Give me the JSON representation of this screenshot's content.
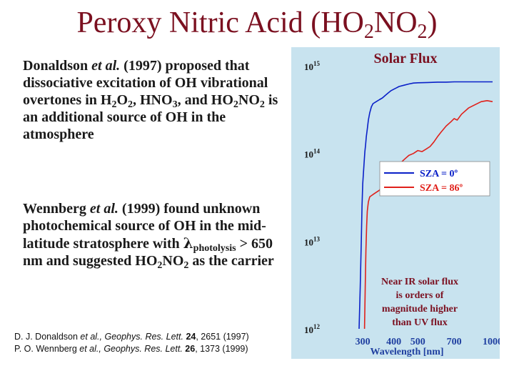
{
  "slide": {
    "title": {
      "part1": "Peroxy Nitric Acid (HO",
      "sub1": "2",
      "part2": "NO",
      "sub2": "2",
      "part3": ")"
    },
    "para1": {
      "t1": "Donaldson ",
      "etal": "et al.",
      "t2": " (1997) proposed that dissociative excitation of OH vibrational overtones in H",
      "s1": "2",
      "t3": "O",
      "s2": "2",
      "t4": ", HNO",
      "s3": "3",
      "t5": ", and HO",
      "s4": "2",
      "t6": "NO",
      "s5": "2",
      "t7": " is an additional source of OH in the atmosphere"
    },
    "para2": {
      "t1": "Wennberg ",
      "etal": "et al.",
      "t2": " (1999) found unknown photochemical source of OH in the mid-latitude stratosphere with ",
      "lambda": "λ",
      "lsub": "photolysis",
      "t3": " > 650 nm and suggested HO",
      "s1": "2",
      "t4": "NO",
      "s2": "2",
      "t5": " as the carrier"
    },
    "refs": [
      {
        "authors": "D. J. Donaldson ",
        "etal": "et al.",
        "journal": ", Geophys. Res. Lett. ",
        "volume": "24",
        "rest": ", 2651 (1997)"
      },
      {
        "authors": "P. O. Wennberg ",
        "etal": "et al.",
        "journal": ", Geophys. Res. Lett. ",
        "volume": "26",
        "rest": ", 1373 (1999)"
      }
    ]
  },
  "chart_data": {
    "type": "line",
    "title": "Solar Flux",
    "xlabel": "Wavelength [nm]",
    "ylabel": "",
    "xscale": "log",
    "yscale": "log",
    "xlim": [
      230,
      1000
    ],
    "ylim": [
      1000000000000.0,
      1000000000000000.0
    ],
    "x_ticks": [
      300,
      400,
      500,
      700,
      1000
    ],
    "x_tick_labels": [
      "300",
      "400",
      "500",
      "700",
      "1000"
    ],
    "y_ticks": [
      {
        "base": "10",
        "exp": "15"
      },
      {
        "base": "10",
        "exp": "14"
      },
      {
        "base": "10",
        "exp": "13"
      },
      {
        "base": "10",
        "exp": "12"
      }
    ],
    "legend_position": "middle-right",
    "annotation": "Near IR solar flux is orders of magnitude higher than UV flux",
    "colors": {
      "background": "#c8e3ef",
      "title": "#7b1020",
      "sza0": "#0a20c8",
      "sza86": "#e0201a",
      "axis_text": "#1a1a1a",
      "xlabel": "#1f3fa0"
    },
    "series": [
      {
        "name": "SZA = 0º",
        "color": "#0a20c8",
        "x": [
          290,
          293,
          296,
          298,
          300,
          302,
          304,
          306,
          308,
          310,
          313,
          316,
          320,
          325,
          330,
          340,
          350,
          360,
          370,
          380,
          390,
          400,
          410,
          420,
          440,
          460,
          480,
          500,
          550,
          600,
          650,
          700,
          800,
          900,
          1000
        ],
        "y": [
          1000000000000.0,
          3000000000000.0,
          10000000000000.0,
          25000000000000.0,
          45000000000000.0,
          60000000000000.0,
          80000000000000.0,
          105000000000000.0,
          125000000000000.0,
          155000000000000.0,
          190000000000000.0,
          240000000000000.0,
          290000000000000.0,
          340000000000000.0,
          370000000000000.0,
          390000000000000.0,
          410000000000000.0,
          430000000000000.0,
          460000000000000.0,
          490000000000000.0,
          520000000000000.0,
          540000000000000.0,
          560000000000000.0,
          580000000000000.0,
          600000000000000.0,
          620000000000000.0,
          635000000000000.0,
          640000000000000.0,
          645000000000000.0,
          650000000000000.0,
          650000000000000.0,
          655000000000000.0,
          655000000000000.0,
          655000000000000.0,
          655000000000000.0
        ]
      },
      {
        "name": "SZA = 86º",
        "color": "#e0201a",
        "x": [
          305,
          307,
          309,
          311,
          313,
          316,
          320,
          330,
          340,
          350,
          360,
          370,
          380,
          400,
          420,
          440,
          460,
          480,
          500,
          520,
          540,
          560,
          580,
          600,
          620,
          650,
          680,
          700,
          720,
          750,
          800,
          850,
          900,
          950,
          1000
        ],
        "y": [
          1000000000000.0,
          3000000000000.0,
          8000000000000.0,
          15000000000000.0,
          22000000000000.0,
          28000000000000.0,
          32000000000000.0,
          34000000000000.0,
          36000000000000.0,
          38000000000000.0,
          43000000000000.0,
          50000000000000.0,
          57000000000000.0,
          65000000000000.0,
          75000000000000.0,
          85000000000000.0,
          95000000000000.0,
          100000000000000.0,
          108000000000000.0,
          105000000000000.0,
          112000000000000.0,
          120000000000000.0,
          135000000000000.0,
          155000000000000.0,
          175000000000000.0,
          205000000000000.0,
          230000000000000.0,
          250000000000000.0,
          240000000000000.0,
          280000000000000.0,
          330000000000000.0,
          360000000000000.0,
          390000000000000.0,
          400000000000000.0,
          390000000000000.0
        ]
      }
    ]
  }
}
